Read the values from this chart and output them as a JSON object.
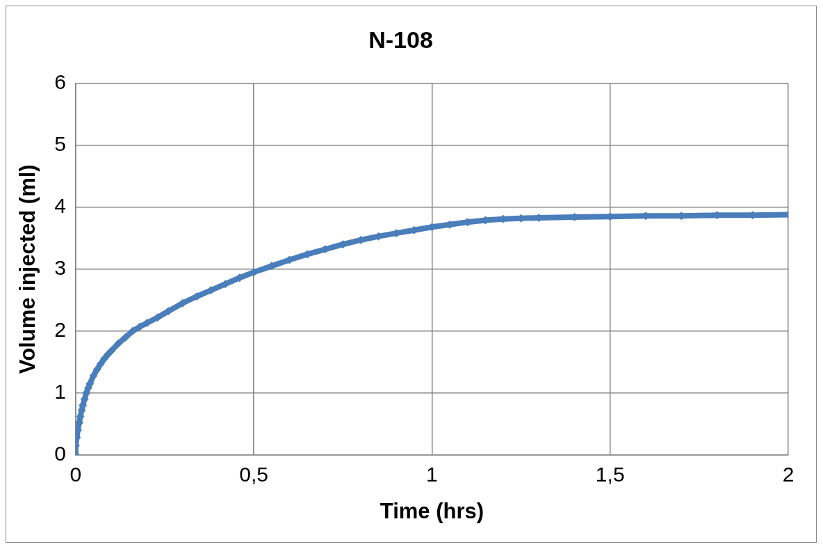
{
  "chart_data": {
    "type": "line",
    "title": "N-108",
    "xlabel": "Time (hrs)",
    "ylabel": "Volume injected (ml)",
    "series": [
      {
        "color": "#4a7ebb",
        "x": [
          0,
          0,
          0.003,
          0.006,
          0.01,
          0.013,
          0.017,
          0.02,
          0.025,
          0.03,
          0.035,
          0.04,
          0.05,
          0.06,
          0.07,
          0.08,
          0.09,
          0.1,
          0.12,
          0.14,
          0.16,
          0.18,
          0.2,
          0.23,
          0.26,
          0.3,
          0.34,
          0.38,
          0.42,
          0.46,
          0.5,
          0.55,
          0.6,
          0.65,
          0.7,
          0.75,
          0.8,
          0.85,
          0.9,
          0.95,
          1.0,
          1.05,
          1.1,
          1.15,
          1.2,
          1.25,
          1.3,
          1.4,
          1.5,
          1.6,
          1.7,
          1.8,
          1.9,
          2.0
        ],
        "values": [
          0,
          0.15,
          0.28,
          0.4,
          0.52,
          0.62,
          0.72,
          0.8,
          0.9,
          1.0,
          1.08,
          1.15,
          1.28,
          1.38,
          1.47,
          1.55,
          1.62,
          1.68,
          1.8,
          1.9,
          2.0,
          2.07,
          2.13,
          2.22,
          2.32,
          2.45,
          2.56,
          2.66,
          2.76,
          2.86,
          2.95,
          3.05,
          3.15,
          3.24,
          3.32,
          3.4,
          3.47,
          3.53,
          3.58,
          3.63,
          3.68,
          3.72,
          3.76,
          3.79,
          3.81,
          3.82,
          3.83,
          3.84,
          3.85,
          3.86,
          3.86,
          3.87,
          3.87,
          3.88
        ]
      }
    ],
    "xlim": [
      0,
      2
    ],
    "xticks": [
      0,
      {
        "value": 0.5,
        "label": "0,5"
      },
      1,
      {
        "value": 1.5,
        "label": "1,5"
      },
      2
    ],
    "ylim": [
      0,
      6
    ],
    "yticks": [
      0,
      1,
      2,
      3,
      4,
      5,
      6
    ],
    "grid": true,
    "legend": false,
    "marker": "diamond",
    "line_style": "solid"
  }
}
